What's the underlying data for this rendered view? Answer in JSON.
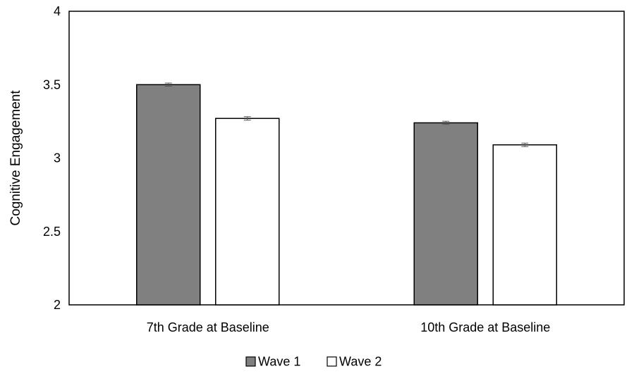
{
  "chart_data": {
    "type": "bar",
    "title": "",
    "xlabel": "",
    "ylabel": "Cognitive Engagement",
    "ylim": [
      2,
      4
    ],
    "yticks": [
      2,
      2.5,
      3,
      3.5,
      4
    ],
    "ytick_labels": [
      "2",
      "2.5",
      "3",
      "3.5",
      "4"
    ],
    "grid": false,
    "legend_position": "bottom",
    "categories": [
      "7th Grade at Baseline",
      "10th Grade at Baseline"
    ],
    "series": [
      {
        "name": "Wave 1",
        "values": [
          3.5,
          3.24
        ],
        "error": [
          0.006,
          0.006
        ],
        "color": "#808080"
      },
      {
        "name": "Wave 2",
        "values": [
          3.27,
          3.09
        ],
        "error": [
          0.007,
          0.007
        ],
        "color": "#ffffff"
      }
    ]
  }
}
